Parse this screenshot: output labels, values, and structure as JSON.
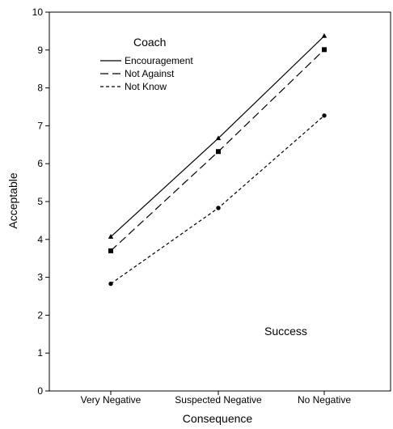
{
  "chart_data": {
    "type": "line",
    "title": "",
    "xlabel": "Consequence",
    "ylabel": "Acceptable",
    "categories": [
      "Very Negative",
      "Suspected Negative",
      "No Negative"
    ],
    "ylim": [
      0,
      10
    ],
    "yticks": [
      "0",
      "1",
      "2",
      "3",
      "4",
      "5",
      "6",
      "7",
      "8",
      "9",
      "10"
    ],
    "grid": false,
    "legend": {
      "title": "Coach",
      "placement": "top-left",
      "entries": [
        "Encouragement",
        "Not Against",
        "Not Know"
      ]
    },
    "annotation": "Success",
    "series": [
      {
        "name": "Encouragement",
        "values": [
          4.07,
          6.67,
          9.37
        ],
        "marker": "triangle",
        "dash": "solid"
      },
      {
        "name": "Not Against",
        "values": [
          3.7,
          6.32,
          9.01
        ],
        "marker": "square",
        "dash": "long-dash"
      },
      {
        "name": "Not Know",
        "values": [
          2.83,
          4.83,
          7.27
        ],
        "marker": "circle",
        "dash": "short-dash"
      }
    ]
  }
}
